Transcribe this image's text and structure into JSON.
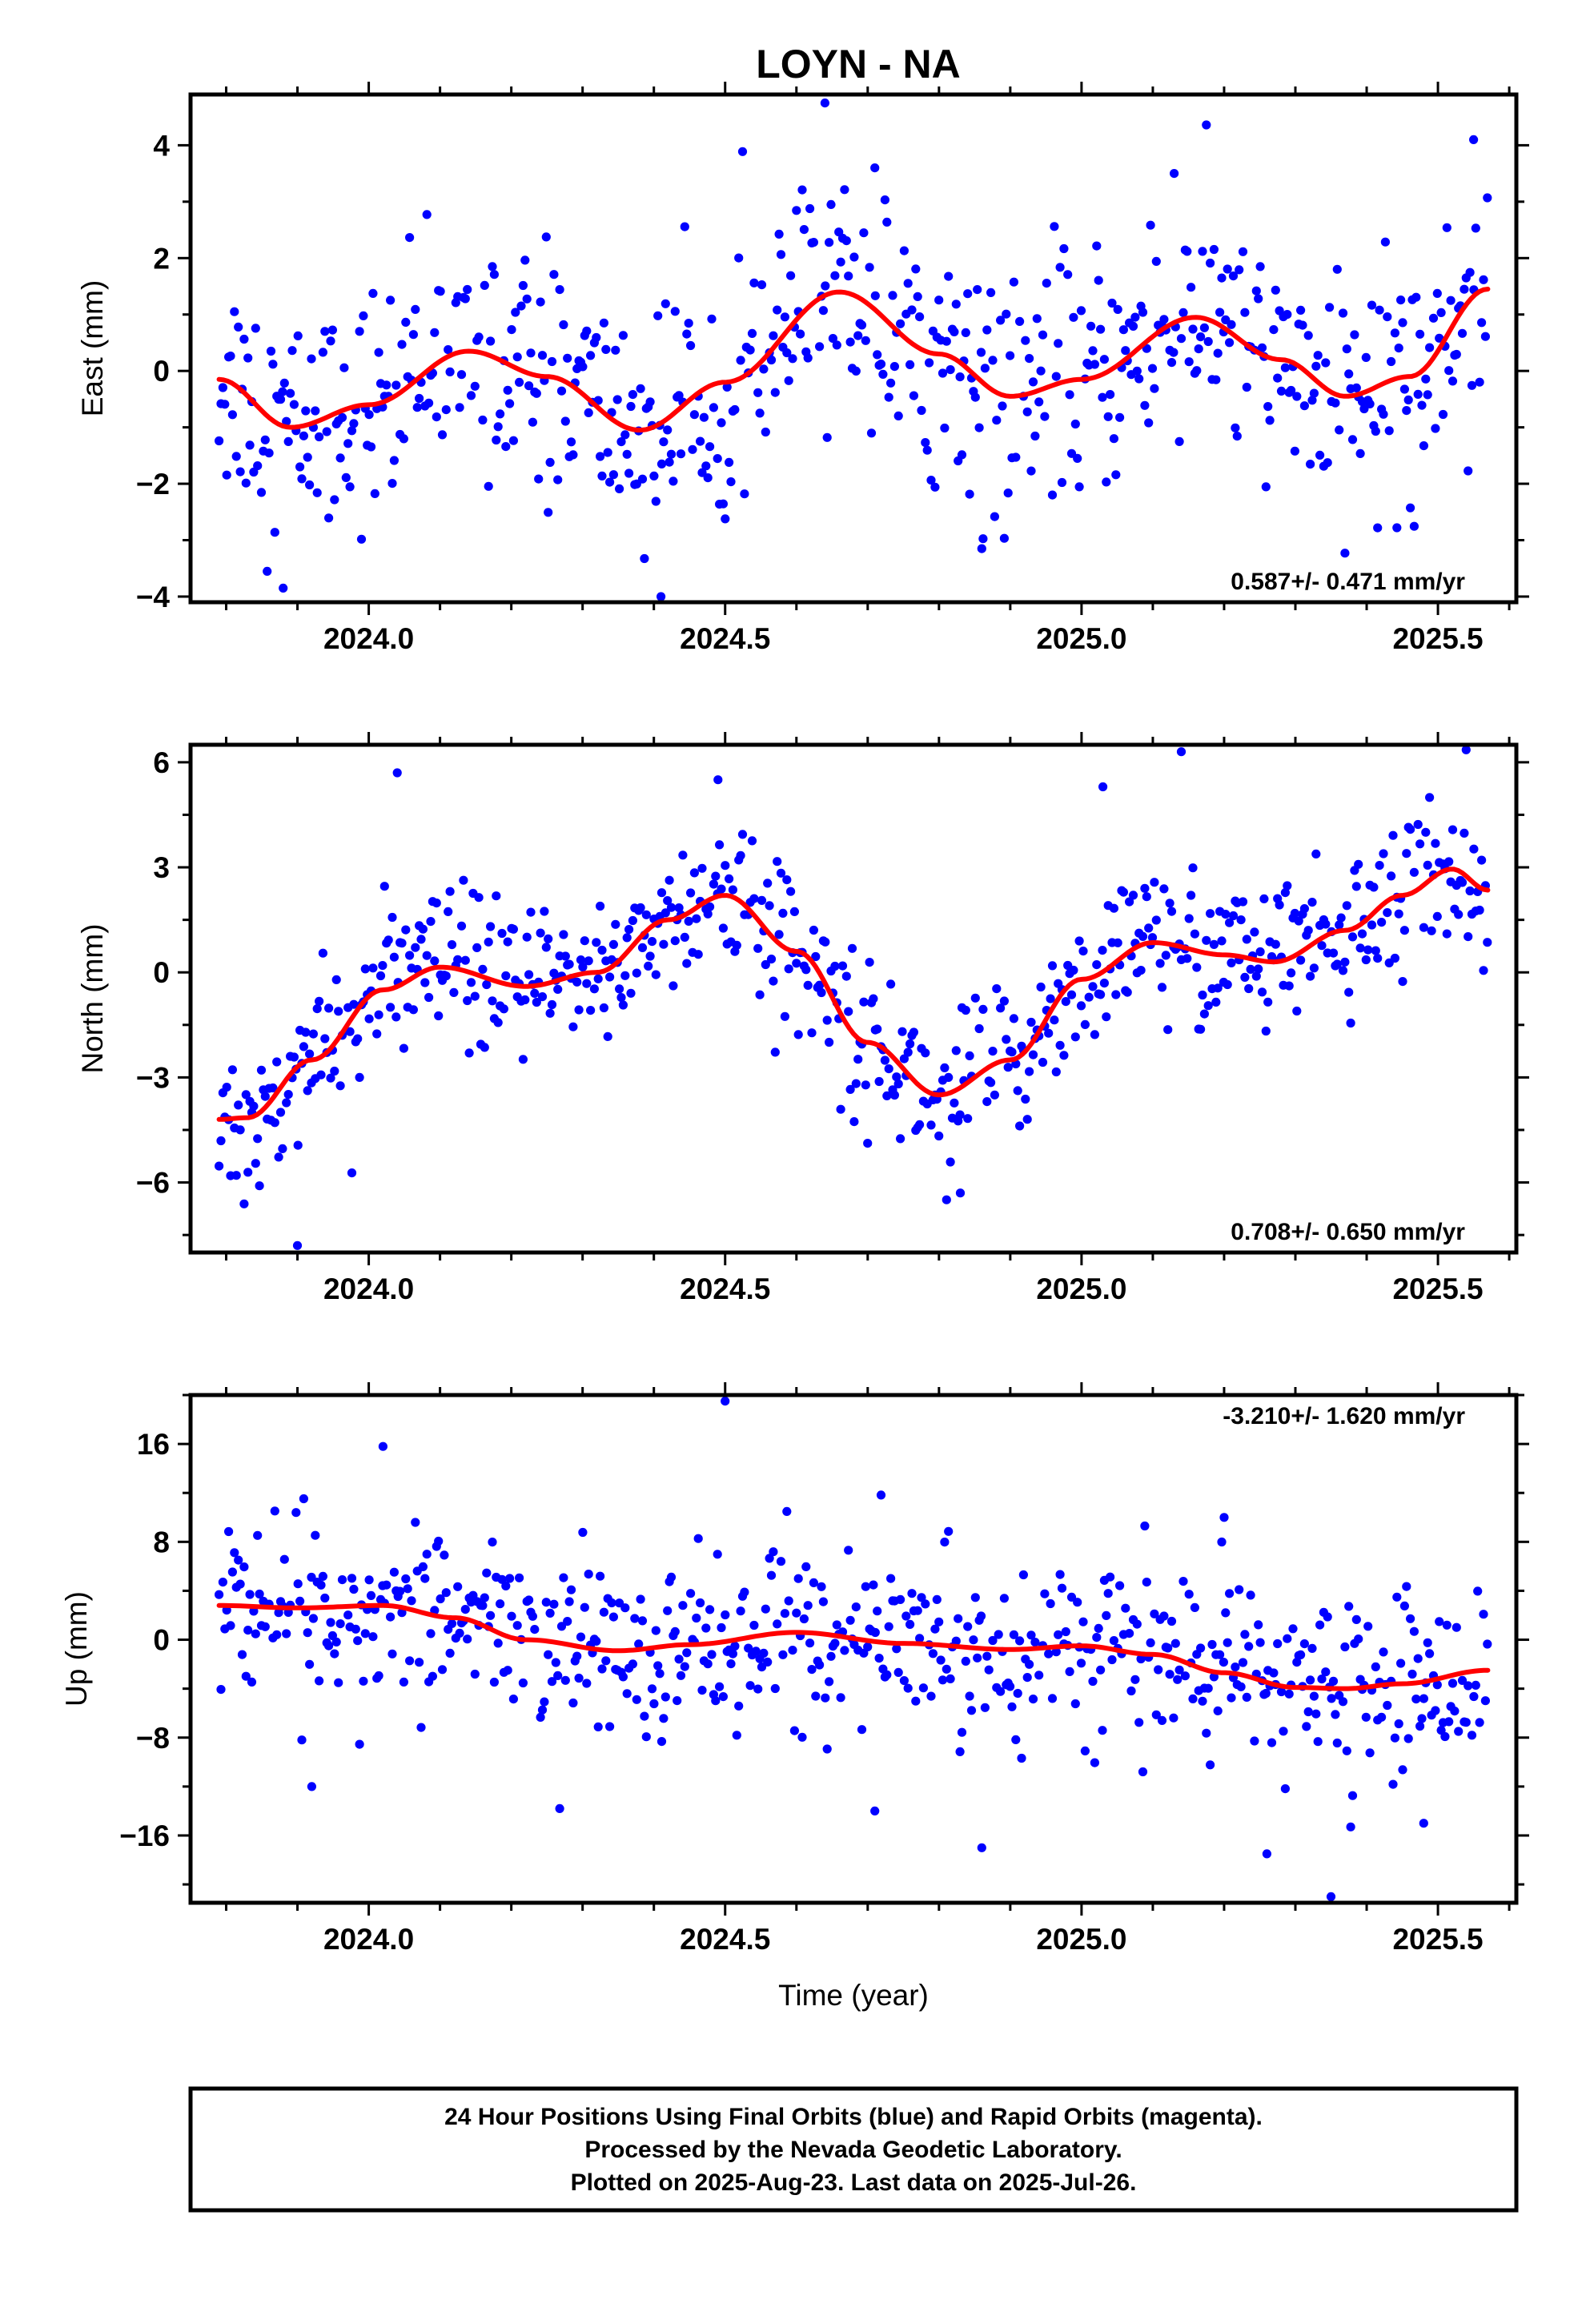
{
  "footer": {
    "lines": [
      "24 Hour Positions Using Final Orbits (blue) and Rapid Orbits (magenta).",
      "Processed by the Nevada Geodetic Laboratory.",
      "Plotted on 2025-Aug-23. Last data on 2025-Jul-26."
    ]
  },
  "chart_data": [
    {
      "type": "scatter",
      "title": "LOYN - NA",
      "ylabel": "East (mm)",
      "xlabel": "",
      "xlim": [
        2023.75,
        2025.61
      ],
      "ylim": [
        -4.1,
        4.9
      ],
      "yticks": [
        -4,
        -2,
        0,
        2,
        4
      ],
      "xticks": [
        "2024.0",
        "2024.5",
        "2025.0",
        "2025.5"
      ],
      "rate_label": "0.587+/- 0.471 mm/yr",
      "point_color": "#0000ff",
      "fit_color": "#ff0000",
      "noise_sd": 1.05,
      "fit": {
        "x": [
          2023.79,
          2023.89,
          2024.0,
          2024.14,
          2024.25,
          2024.38,
          2024.5,
          2024.66,
          2024.8,
          2024.9,
          2025.0,
          2025.16,
          2025.28,
          2025.37,
          2025.46,
          2025.57
        ],
        "y": [
          -0.15,
          -1.0,
          -0.6,
          0.35,
          -0.1,
          -1.05,
          -0.2,
          1.4,
          0.3,
          -0.45,
          -0.15,
          0.95,
          0.2,
          -0.45,
          -0.1,
          1.45
        ]
      },
      "outliers": {
        "x": [
          2023.88,
          2024.41,
          2024.64,
          2024.71,
          2024.86,
          2025.13,
          2025.55
        ],
        "y": [
          -3.85,
          -4.0,
          4.75,
          3.6,
          -3.15,
          3.5,
          4.1
        ]
      }
    },
    {
      "type": "scatter",
      "title": "",
      "ylabel": "North (mm)",
      "xlabel": "",
      "xlim": [
        2023.75,
        2025.61
      ],
      "ylim": [
        -8.0,
        6.5
      ],
      "yticks": [
        -6,
        -3,
        0,
        3,
        6
      ],
      "xticks": [
        "2024.0",
        "2024.5",
        "2025.0",
        "2025.5"
      ],
      "rate_label": "0.708+/- 0.650 mm/yr",
      "point_color": "#0000ff",
      "fit_color": "#ff0000",
      "noise_sd": 1.1,
      "fit": {
        "x": [
          2023.79,
          2023.83,
          2023.92,
          2024.02,
          2024.1,
          2024.22,
          2024.32,
          2024.42,
          2024.5,
          2024.6,
          2024.7,
          2024.8,
          2024.9,
          2025.0,
          2025.1,
          2025.2,
          2025.27,
          2025.37,
          2025.45,
          2025.52,
          2025.57
        ],
        "y": [
          -4.2,
          -4.15,
          -2.5,
          -0.5,
          0.15,
          -0.4,
          0.0,
          1.5,
          2.2,
          0.6,
          -2.0,
          -3.5,
          -2.5,
          -0.2,
          0.85,
          0.5,
          0.3,
          1.2,
          2.2,
          2.95,
          2.35
        ]
      },
      "outliers": {
        "x": [
          2023.9,
          2024.04,
          2024.49,
          2025.14,
          2025.03,
          2024.83
        ],
        "y": [
          -7.8,
          5.7,
          5.5,
          6.3,
          5.3,
          -6.3
        ]
      }
    },
    {
      "type": "scatter",
      "title": "",
      "ylabel": "Up (mm)",
      "xlabel": "Time (year)",
      "xlim": [
        2023.75,
        2025.61
      ],
      "ylim": [
        -21.5,
        20.0
      ],
      "yticks": [
        -16,
        -8,
        0,
        8,
        16
      ],
      "xticks": [
        "2024.0",
        "2024.5",
        "2025.0",
        "2025.5"
      ],
      "rate_label": "-3.210+/- 1.620 mm/yr",
      "point_color": "#0000ff",
      "fit_color": "#ff0000",
      "noise_sd": 3.6,
      "fit": {
        "x": [
          2023.79,
          2023.9,
          2024.02,
          2024.12,
          2024.22,
          2024.35,
          2024.45,
          2024.6,
          2024.75,
          2024.9,
          2025.0,
          2025.1,
          2025.2,
          2025.3,
          2025.37,
          2025.45,
          2025.57
        ],
        "y": [
          2.8,
          2.6,
          2.8,
          1.8,
          0.0,
          -0.9,
          -0.4,
          0.6,
          -0.3,
          -0.8,
          -0.5,
          -1.2,
          -2.7,
          -3.9,
          -4.0,
          -3.6,
          -2.5
        ]
      },
      "outliers": {
        "x": [
          2024.5,
          2024.02,
          2025.35,
          2025.26,
          2024.86,
          2024.71,
          2023.92,
          2025.48,
          2025.2
        ],
        "y": [
          19.5,
          15.8,
          -21.0,
          -17.5,
          -17.0,
          -14.0,
          -12.0,
          -15.0,
          10.0
        ]
      }
    }
  ]
}
